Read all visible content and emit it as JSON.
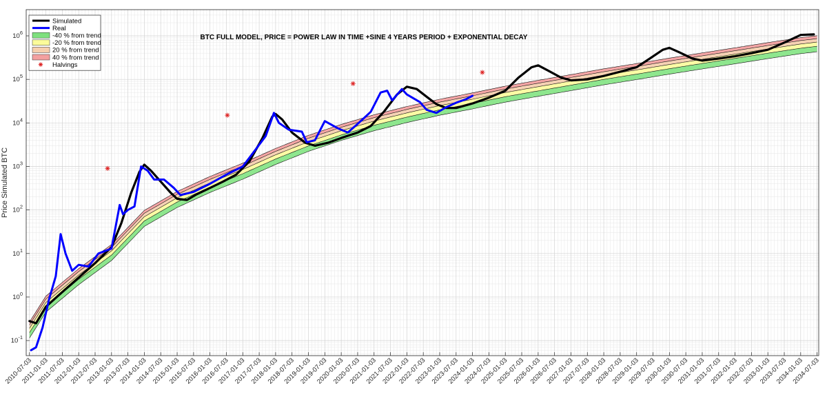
{
  "chart_data": {
    "type": "line",
    "title": "BTC FULL MODEL, PRICE = POWER LAW IN TIME +SINE 4 YEARS PERIOD + EXPONENTIAL DECAY",
    "xlabel": "",
    "ylabel": "Price Simulated BTC",
    "y_scale": "log10",
    "ylim": [
      0.045,
      4000000
    ],
    "xlim": [
      2010.4,
      2034.55
    ],
    "grid": true,
    "legend_position": "top-left",
    "x_tick_labels": [
      "2010-07-03",
      "2011-01-03",
      "2011-07-03",
      "2012-01-03",
      "2012-07-03",
      "2013-01-03",
      "2013-07-03",
      "2014-01-03",
      "2014-07-03",
      "2015-01-03",
      "2015-07-03",
      "2016-01-03",
      "2016-07-03",
      "2017-01-03",
      "2017-07-03",
      "2018-01-03",
      "2018-07-03",
      "2019-01-03",
      "2019-07-03",
      "2020-01-03",
      "2020-07-03",
      "2021-01-03",
      "2021-07-03",
      "2022-01-03",
      "2022-07-03",
      "2023-01-03",
      "2023-07-03",
      "2024-01-03",
      "2024-07-03",
      "2025-01-03",
      "2025-07-03",
      "2026-01-03",
      "2026-07-03",
      "2027-01-03",
      "2027-07-03",
      "2028-01-03",
      "2028-07-03",
      "2029-01-03",
      "2029-07-03",
      "2030-01-03",
      "2030-07-03",
      "2031-01-03",
      "2031-07-03",
      "2032-01-03",
      "2032-07-03",
      "2033-01-03",
      "2033-07-03",
      "2034-01-03",
      "2034-07-03"
    ],
    "y_tick_labels": [
      {
        "value": 0.1,
        "base": "10",
        "exp": "-1"
      },
      {
        "value": 1,
        "base": "10",
        "exp": "0"
      },
      {
        "value": 10,
        "base": "10",
        "exp": "1"
      },
      {
        "value": 100,
        "base": "10",
        "exp": "2"
      },
      {
        "value": 1000,
        "base": "10",
        "exp": "3"
      },
      {
        "value": 10000,
        "base": "10",
        "exp": "4"
      },
      {
        "value": 100000,
        "base": "10",
        "exp": "5"
      },
      {
        "value": 1000000,
        "base": "10",
        "exp": "6"
      }
    ],
    "trend_band_factors": [
      0.6,
      0.8,
      1.2,
      1.4
    ],
    "trend_anchors": [
      {
        "x": 2010.5,
        "y": 0.19
      },
      {
        "x": 2011.0,
        "y": 0.75
      },
      {
        "x": 2012.0,
        "y": 3.2
      },
      {
        "x": 2013.0,
        "y": 11.5
      },
      {
        "x": 2014.0,
        "y": 70
      },
      {
        "x": 2015.0,
        "y": 190
      },
      {
        "x": 2016.0,
        "y": 420
      },
      {
        "x": 2017.0,
        "y": 850
      },
      {
        "x": 2018.0,
        "y": 1850
      },
      {
        "x": 2019.0,
        "y": 3700
      },
      {
        "x": 2020.0,
        "y": 6600
      },
      {
        "x": 2021.0,
        "y": 11000
      },
      {
        "x": 2022.0,
        "y": 17000
      },
      {
        "x": 2023.0,
        "y": 25000
      },
      {
        "x": 2024.0,
        "y": 35000
      },
      {
        "x": 2025.0,
        "y": 50000
      },
      {
        "x": 2026.0,
        "y": 68000
      },
      {
        "x": 2027.0,
        "y": 92000
      },
      {
        "x": 2028.0,
        "y": 125000
      },
      {
        "x": 2029.0,
        "y": 165000
      },
      {
        "x": 2030.0,
        "y": 220000
      },
      {
        "x": 2031.0,
        "y": 290000
      },
      {
        "x": 2032.0,
        "y": 380000
      },
      {
        "x": 2033.0,
        "y": 500000
      },
      {
        "x": 2034.0,
        "y": 650000
      },
      {
        "x": 2034.5,
        "y": 720000
      }
    ],
    "series": [
      {
        "name": "Simulated",
        "color": "#000000",
        "points": [
          {
            "x": 2010.5,
            "y": 0.28
          },
          {
            "x": 2010.7,
            "y": 0.25
          },
          {
            "x": 2011.0,
            "y": 0.6
          },
          {
            "x": 2011.5,
            "y": 1.3
          },
          {
            "x": 2012.0,
            "y": 2.8
          },
          {
            "x": 2012.5,
            "y": 6
          },
          {
            "x": 2013.0,
            "y": 14
          },
          {
            "x": 2013.3,
            "y": 50
          },
          {
            "x": 2013.6,
            "y": 250
          },
          {
            "x": 2013.85,
            "y": 750
          },
          {
            "x": 2014.0,
            "y": 1100
          },
          {
            "x": 2014.2,
            "y": 800
          },
          {
            "x": 2014.5,
            "y": 450
          },
          {
            "x": 2014.8,
            "y": 250
          },
          {
            "x": 2015.0,
            "y": 180
          },
          {
            "x": 2015.3,
            "y": 170
          },
          {
            "x": 2015.6,
            "y": 230
          },
          {
            "x": 2016.0,
            "y": 320
          },
          {
            "x": 2016.4,
            "y": 450
          },
          {
            "x": 2016.8,
            "y": 650
          },
          {
            "x": 2017.2,
            "y": 1300
          },
          {
            "x": 2017.6,
            "y": 4500
          },
          {
            "x": 2017.9,
            "y": 14000
          },
          {
            "x": 2018.0,
            "y": 16000
          },
          {
            "x": 2018.2,
            "y": 12000
          },
          {
            "x": 2018.5,
            "y": 6000
          },
          {
            "x": 2018.9,
            "y": 3500
          },
          {
            "x": 2019.2,
            "y": 3000
          },
          {
            "x": 2019.6,
            "y": 3500
          },
          {
            "x": 2020.0,
            "y": 4500
          },
          {
            "x": 2020.5,
            "y": 6000
          },
          {
            "x": 2020.9,
            "y": 8500
          },
          {
            "x": 2021.3,
            "y": 18000
          },
          {
            "x": 2021.7,
            "y": 45000
          },
          {
            "x": 2022.0,
            "y": 68000
          },
          {
            "x": 2022.3,
            "y": 60000
          },
          {
            "x": 2022.6,
            "y": 40000
          },
          {
            "x": 2022.9,
            "y": 27000
          },
          {
            "x": 2023.2,
            "y": 22000
          },
          {
            "x": 2023.5,
            "y": 22000
          },
          {
            "x": 2024.0,
            "y": 28000
          },
          {
            "x": 2024.5,
            "y": 38000
          },
          {
            "x": 2025.0,
            "y": 55000
          },
          {
            "x": 2025.4,
            "y": 110000
          },
          {
            "x": 2025.8,
            "y": 190000
          },
          {
            "x": 2026.0,
            "y": 210000
          },
          {
            "x": 2026.3,
            "y": 160000
          },
          {
            "x": 2026.7,
            "y": 110000
          },
          {
            "x": 2027.0,
            "y": 95000
          },
          {
            "x": 2027.5,
            "y": 100000
          },
          {
            "x": 2028.0,
            "y": 120000
          },
          {
            "x": 2028.5,
            "y": 150000
          },
          {
            "x": 2029.0,
            "y": 190000
          },
          {
            "x": 2029.4,
            "y": 300000
          },
          {
            "x": 2029.8,
            "y": 480000
          },
          {
            "x": 2030.0,
            "y": 530000
          },
          {
            "x": 2030.3,
            "y": 420000
          },
          {
            "x": 2030.7,
            "y": 300000
          },
          {
            "x": 2031.0,
            "y": 270000
          },
          {
            "x": 2031.5,
            "y": 300000
          },
          {
            "x": 2032.0,
            "y": 340000
          },
          {
            "x": 2032.5,
            "y": 400000
          },
          {
            "x": 2033.0,
            "y": 480000
          },
          {
            "x": 2033.5,
            "y": 700000
          },
          {
            "x": 2034.0,
            "y": 1050000
          },
          {
            "x": 2034.4,
            "y": 1080000
          }
        ]
      },
      {
        "name": "Real",
        "color": "#0000ff",
        "points": [
          {
            "x": 2010.55,
            "y": 0.06
          },
          {
            "x": 2010.7,
            "y": 0.07
          },
          {
            "x": 2010.9,
            "y": 0.2
          },
          {
            "x": 2011.1,
            "y": 0.9
          },
          {
            "x": 2011.3,
            "y": 3
          },
          {
            "x": 2011.45,
            "y": 28
          },
          {
            "x": 2011.6,
            "y": 10
          },
          {
            "x": 2011.8,
            "y": 4
          },
          {
            "x": 2012.0,
            "y": 5.5
          },
          {
            "x": 2012.3,
            "y": 5
          },
          {
            "x": 2012.6,
            "y": 10
          },
          {
            "x": 2013.0,
            "y": 13
          },
          {
            "x": 2013.25,
            "y": 130
          },
          {
            "x": 2013.35,
            "y": 80
          },
          {
            "x": 2013.5,
            "y": 100
          },
          {
            "x": 2013.7,
            "y": 120
          },
          {
            "x": 2013.9,
            "y": 1000
          },
          {
            "x": 2014.1,
            "y": 800
          },
          {
            "x": 2014.3,
            "y": 500
          },
          {
            "x": 2014.6,
            "y": 500
          },
          {
            "x": 2014.9,
            "y": 320
          },
          {
            "x": 2015.1,
            "y": 220
          },
          {
            "x": 2015.5,
            "y": 260
          },
          {
            "x": 2016.0,
            "y": 400
          },
          {
            "x": 2016.5,
            "y": 650
          },
          {
            "x": 2017.0,
            "y": 1000
          },
          {
            "x": 2017.4,
            "y": 2500
          },
          {
            "x": 2017.7,
            "y": 5000
          },
          {
            "x": 2017.95,
            "y": 17000
          },
          {
            "x": 2018.1,
            "y": 10000
          },
          {
            "x": 2018.4,
            "y": 7000
          },
          {
            "x": 2018.8,
            "y": 6300
          },
          {
            "x": 2018.95,
            "y": 3600
          },
          {
            "x": 2019.2,
            "y": 4000
          },
          {
            "x": 2019.5,
            "y": 11000
          },
          {
            "x": 2019.9,
            "y": 7500
          },
          {
            "x": 2020.2,
            "y": 6000
          },
          {
            "x": 2020.5,
            "y": 9500
          },
          {
            "x": 2020.9,
            "y": 18000
          },
          {
            "x": 2021.2,
            "y": 50000
          },
          {
            "x": 2021.4,
            "y": 55000
          },
          {
            "x": 2021.55,
            "y": 33000
          },
          {
            "x": 2021.85,
            "y": 60000
          },
          {
            "x": 2022.0,
            "y": 45000
          },
          {
            "x": 2022.4,
            "y": 30000
          },
          {
            "x": 2022.6,
            "y": 20000
          },
          {
            "x": 2022.9,
            "y": 17000
          },
          {
            "x": 2023.2,
            "y": 23000
          },
          {
            "x": 2023.5,
            "y": 29000
          },
          {
            "x": 2023.8,
            "y": 35000
          },
          {
            "x": 2024.0,
            "y": 42000
          }
        ]
      }
    ],
    "halvings": [
      {
        "x": 2012.88,
        "y": 900
      },
      {
        "x": 2016.53,
        "y": 15000
      },
      {
        "x": 2020.36,
        "y": 80000
      },
      {
        "x": 2024.3,
        "y": 145000
      }
    ],
    "legend": [
      {
        "label": "Simulated",
        "kind": "line",
        "color": "#000000"
      },
      {
        "label": "Real",
        "kind": "line",
        "color": "#0000ff"
      },
      {
        "label": "-40 % from trend",
        "kind": "patch",
        "color": "#7ee07e"
      },
      {
        "label": "-20 % from trend",
        "kind": "patch",
        "color": "#fbfb9a"
      },
      {
        "label": "20 % from trend",
        "kind": "patch",
        "color": "#f6cfae"
      },
      {
        "label": "40 % from trend",
        "kind": "patch",
        "color": "#f3a0a0"
      },
      {
        "label": "Halvings",
        "kind": "marker",
        "color": "#dd2222"
      }
    ],
    "band_colors": {
      "green": "#8ee68e",
      "yellow": "#fbfba5",
      "peach": "#f6d2b4",
      "red": "#f4a6a6"
    }
  }
}
